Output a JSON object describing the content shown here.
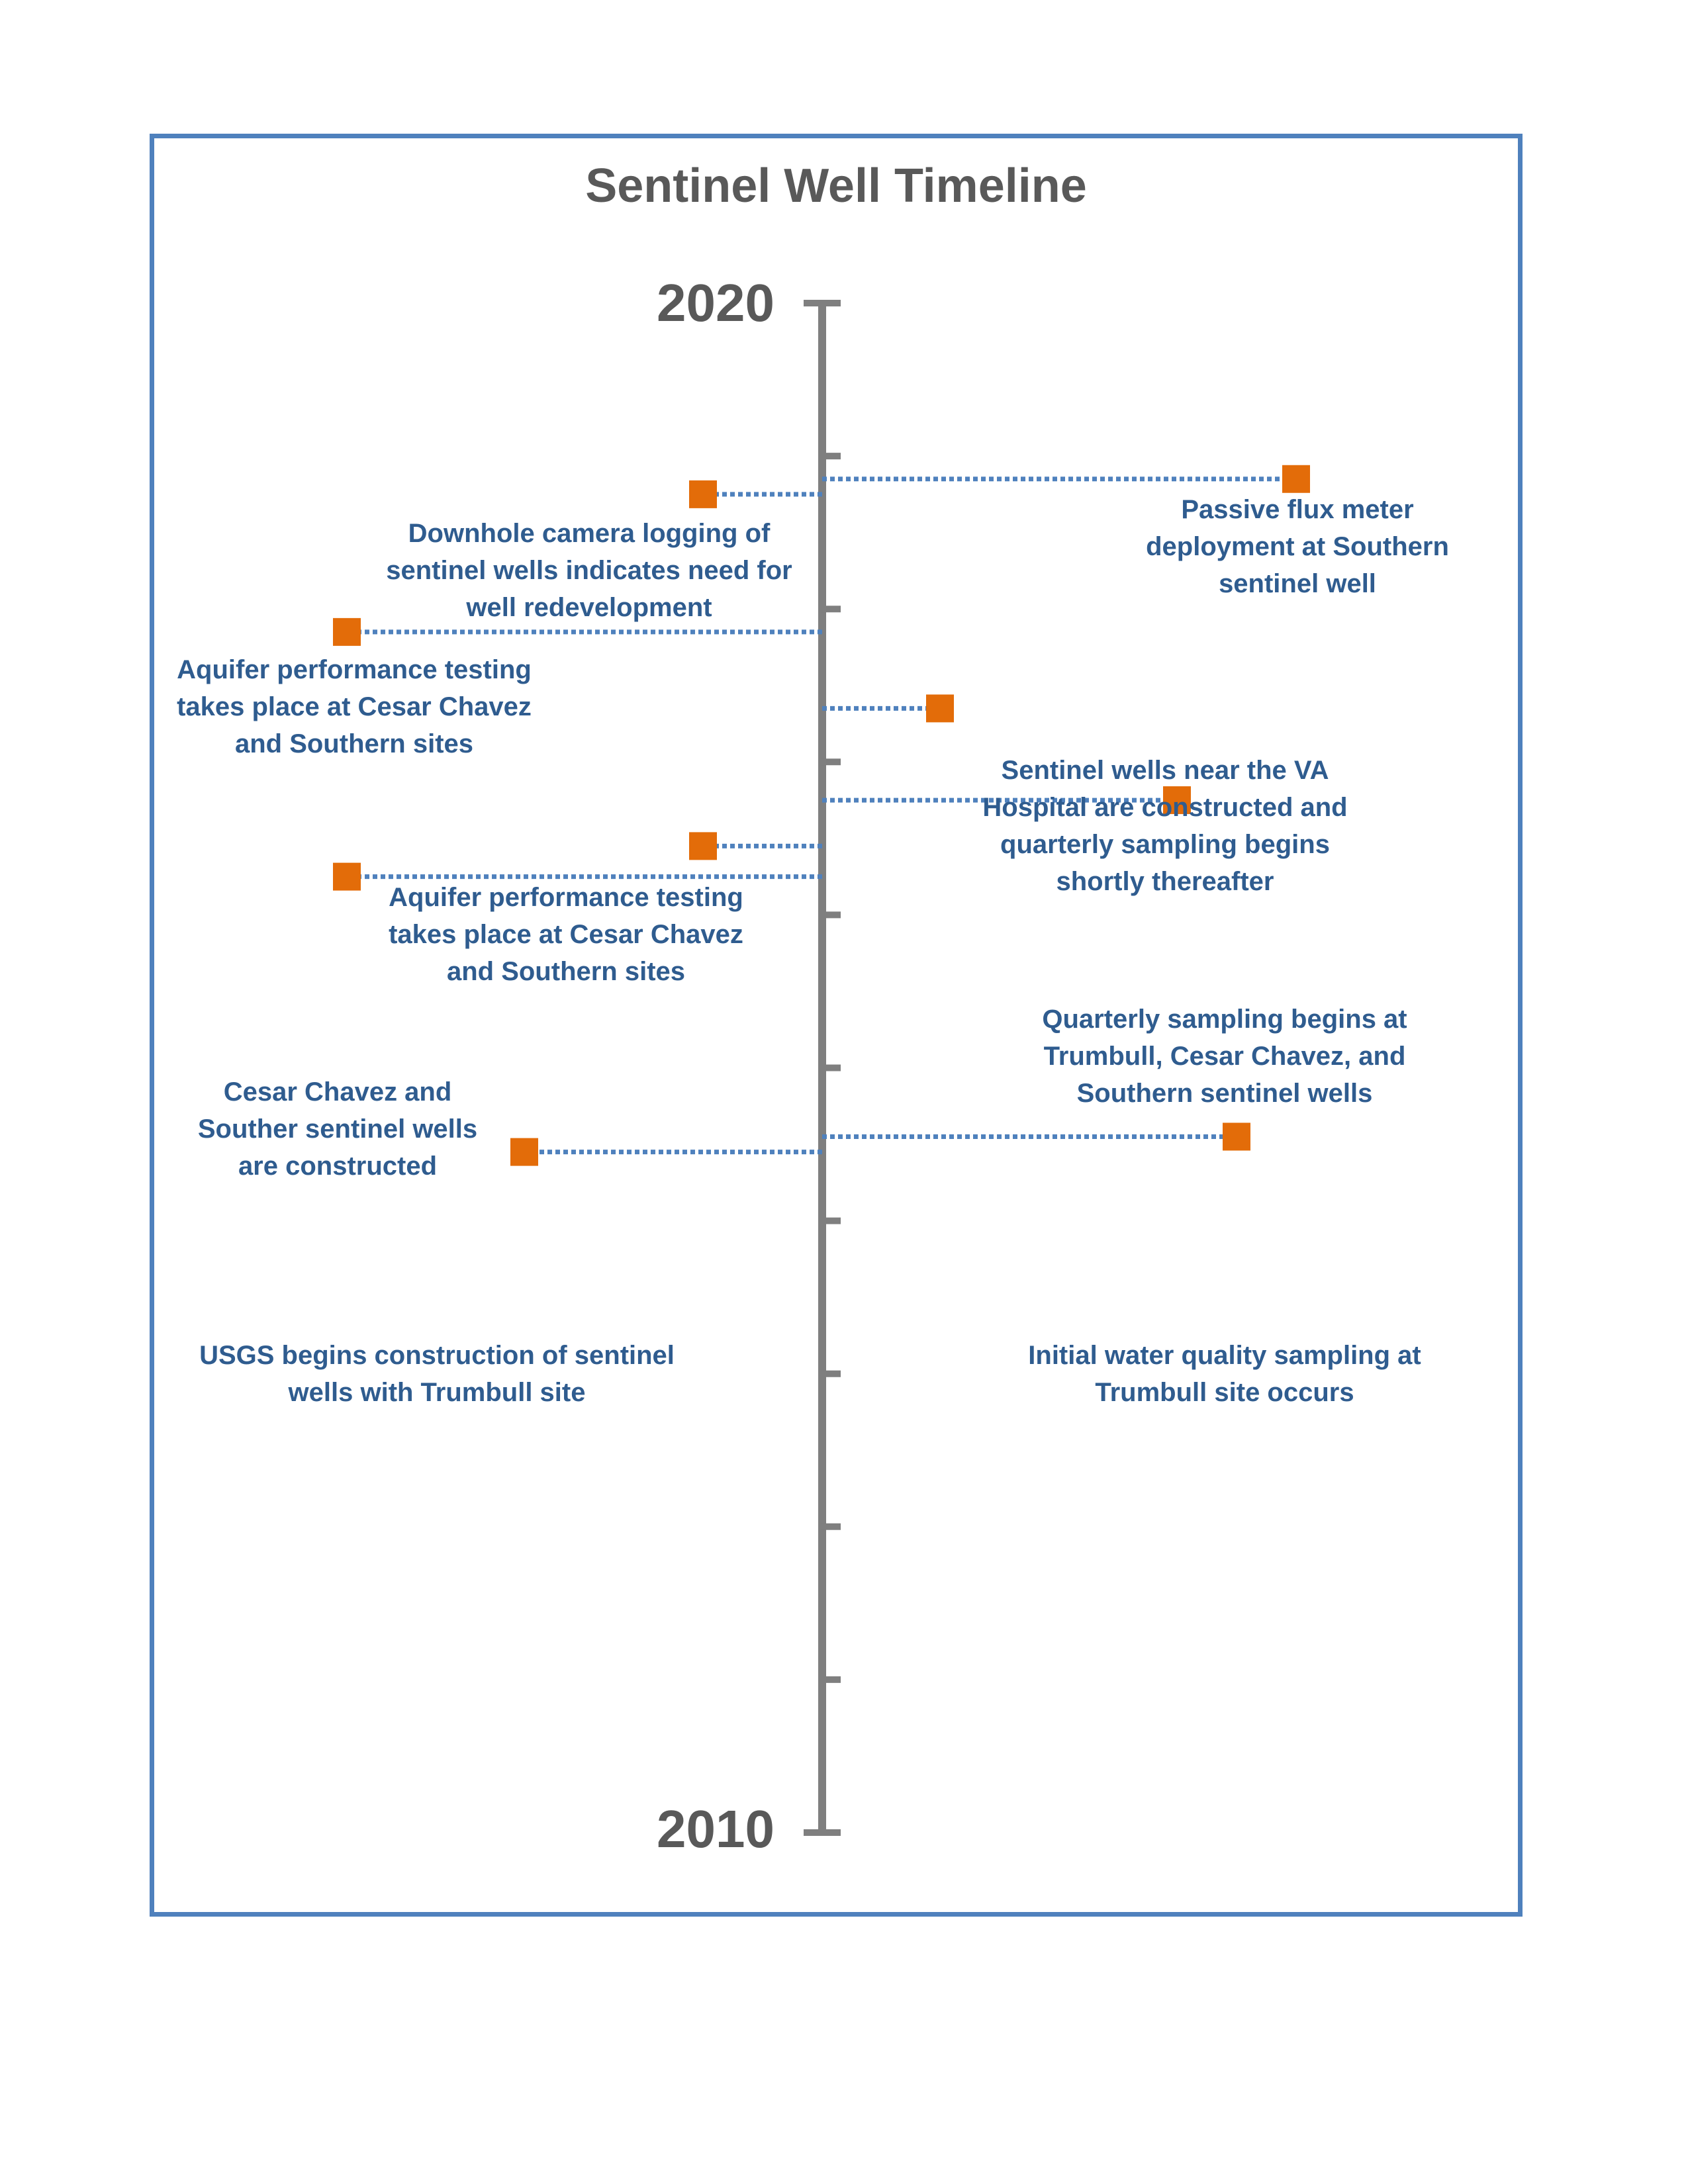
{
  "title": "Sentinel Well Timeline",
  "colors": {
    "frame": "#4f81bd",
    "axis": "#7f7f7f",
    "marker": "#e36c09",
    "connector": "#4f81bd",
    "label_text": "#2f5c8f",
    "title_text": "#595959"
  },
  "chart_data": {
    "type": "timeline",
    "axis": {
      "start_label": "2020",
      "end_label": "2010",
      "range": [
        2020,
        2010
      ],
      "tick_count": 11
    },
    "events": [
      {
        "year": 2018.85,
        "side": "right",
        "label": "Passive flux meter\ndeployment at Southern\nsentinel well"
      },
      {
        "year": 2018.75,
        "side": "left",
        "label": "Downhole camera logging of\nsentinel wells indicates need for\nwell redevelopment"
      },
      {
        "year": 2017.85,
        "side": "left",
        "label": "Aquifer performance testing\ntakes place at Cesar Chavez\nand Southern sites"
      },
      {
        "year": 2017.35,
        "side": "right",
        "label": "Sentinel wells near the VA\nHospital are constructed and\nquarterly sampling begins\nshortly thereafter"
      },
      {
        "year": 2016.75,
        "side": "right",
        "label": "Quarterly sampling begins at\nTrumbull, Cesar Chavez, and\nSouthern sentinel wells"
      },
      {
        "year": 2016.45,
        "side": "left",
        "label": "Aquifer performance testing\ntakes place at Cesar Chavez\nand Southern sites"
      },
      {
        "year": 2016.25,
        "side": "left",
        "label": "Cesar Chavez and\nSouther sentinel wells\nare constructed"
      },
      {
        "year": 2014.55,
        "side": "right",
        "label": "Initial water quality sampling at\nTrumbull site occurs"
      },
      {
        "year": 2014.45,
        "side": "left",
        "label": "USGS begins construction of sentinel\nwells with Trumbull site"
      }
    ]
  }
}
